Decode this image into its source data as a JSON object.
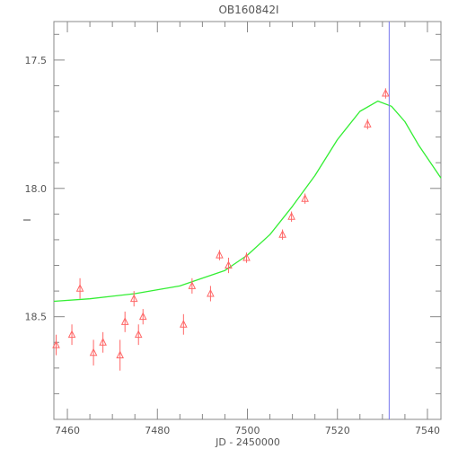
{
  "chart_data": {
    "type": "scatter",
    "title": "OB160842I",
    "xlabel": "JD - 2450000",
    "ylabel": "I",
    "xlim": [
      7457,
      7543
    ],
    "ylim": [
      18.9,
      17.35
    ],
    "y_inverted": true,
    "grid": false,
    "x_ticks": [
      "7460",
      "7480",
      "7500",
      "7520",
      "7540"
    ],
    "x_tick_values": [
      7460,
      7480,
      7500,
      7520,
      7540
    ],
    "y_ticks": [
      "17.5",
      "18.0",
      "18.5"
    ],
    "y_tick_values": [
      17.5,
      18.0,
      18.5
    ],
    "colors": {
      "points": "#ff6666",
      "model": "#33ee33",
      "marker": "#7777ee",
      "axes": "#888888"
    },
    "series": [
      {
        "type": "scatter",
        "points": [
          {
            "x": 7457.5,
            "y": 18.61,
            "err": 0.04
          },
          {
            "x": 7461.0,
            "y": 18.57,
            "err": 0.04
          },
          {
            "x": 7462.8,
            "y": 18.39,
            "err": 0.04
          },
          {
            "x": 7465.8,
            "y": 18.64,
            "err": 0.05
          },
          {
            "x": 7467.9,
            "y": 18.6,
            "err": 0.04
          },
          {
            "x": 7471.7,
            "y": 18.65,
            "err": 0.06
          },
          {
            "x": 7472.8,
            "y": 18.52,
            "err": 0.04
          },
          {
            "x": 7474.8,
            "y": 18.43,
            "err": 0.03
          },
          {
            "x": 7475.8,
            "y": 18.57,
            "err": 0.04
          },
          {
            "x": 7476.8,
            "y": 18.5,
            "err": 0.03
          },
          {
            "x": 7485.8,
            "y": 18.53,
            "err": 0.04
          },
          {
            "x": 7487.7,
            "y": 18.38,
            "err": 0.03
          },
          {
            "x": 7491.8,
            "y": 18.41,
            "err": 0.03
          },
          {
            "x": 7493.8,
            "y": 18.26,
            "err": 0.02
          },
          {
            "x": 7495.8,
            "y": 18.3,
            "err": 0.03
          },
          {
            "x": 7499.8,
            "y": 18.27,
            "err": 0.02
          },
          {
            "x": 7507.8,
            "y": 18.18,
            "err": 0.02
          },
          {
            "x": 7509.8,
            "y": 18.11,
            "err": 0.02
          },
          {
            "x": 7512.8,
            "y": 18.04,
            "err": 0.02
          },
          {
            "x": 7526.7,
            "y": 17.75,
            "err": 0.02
          },
          {
            "x": 7530.7,
            "y": 17.63,
            "err": 0.02
          }
        ]
      },
      {
        "type": "line",
        "points": [
          {
            "x": 7457,
            "y": 18.44
          },
          {
            "x": 7465,
            "y": 18.43
          },
          {
            "x": 7475,
            "y": 18.41
          },
          {
            "x": 7485,
            "y": 18.38
          },
          {
            "x": 7490,
            "y": 18.35
          },
          {
            "x": 7495,
            "y": 18.32
          },
          {
            "x": 7500,
            "y": 18.26
          },
          {
            "x": 7505,
            "y": 18.18
          },
          {
            "x": 7510,
            "y": 18.07
          },
          {
            "x": 7515,
            "y": 17.95
          },
          {
            "x": 7520,
            "y": 17.81
          },
          {
            "x": 7525,
            "y": 17.7
          },
          {
            "x": 7529,
            "y": 17.66
          },
          {
            "x": 7532,
            "y": 17.68
          },
          {
            "x": 7535,
            "y": 17.74
          },
          {
            "x": 7538,
            "y": 17.83
          },
          {
            "x": 7543,
            "y": 17.96
          }
        ]
      }
    ],
    "vertical_line": {
      "x": 7531.5
    }
  }
}
